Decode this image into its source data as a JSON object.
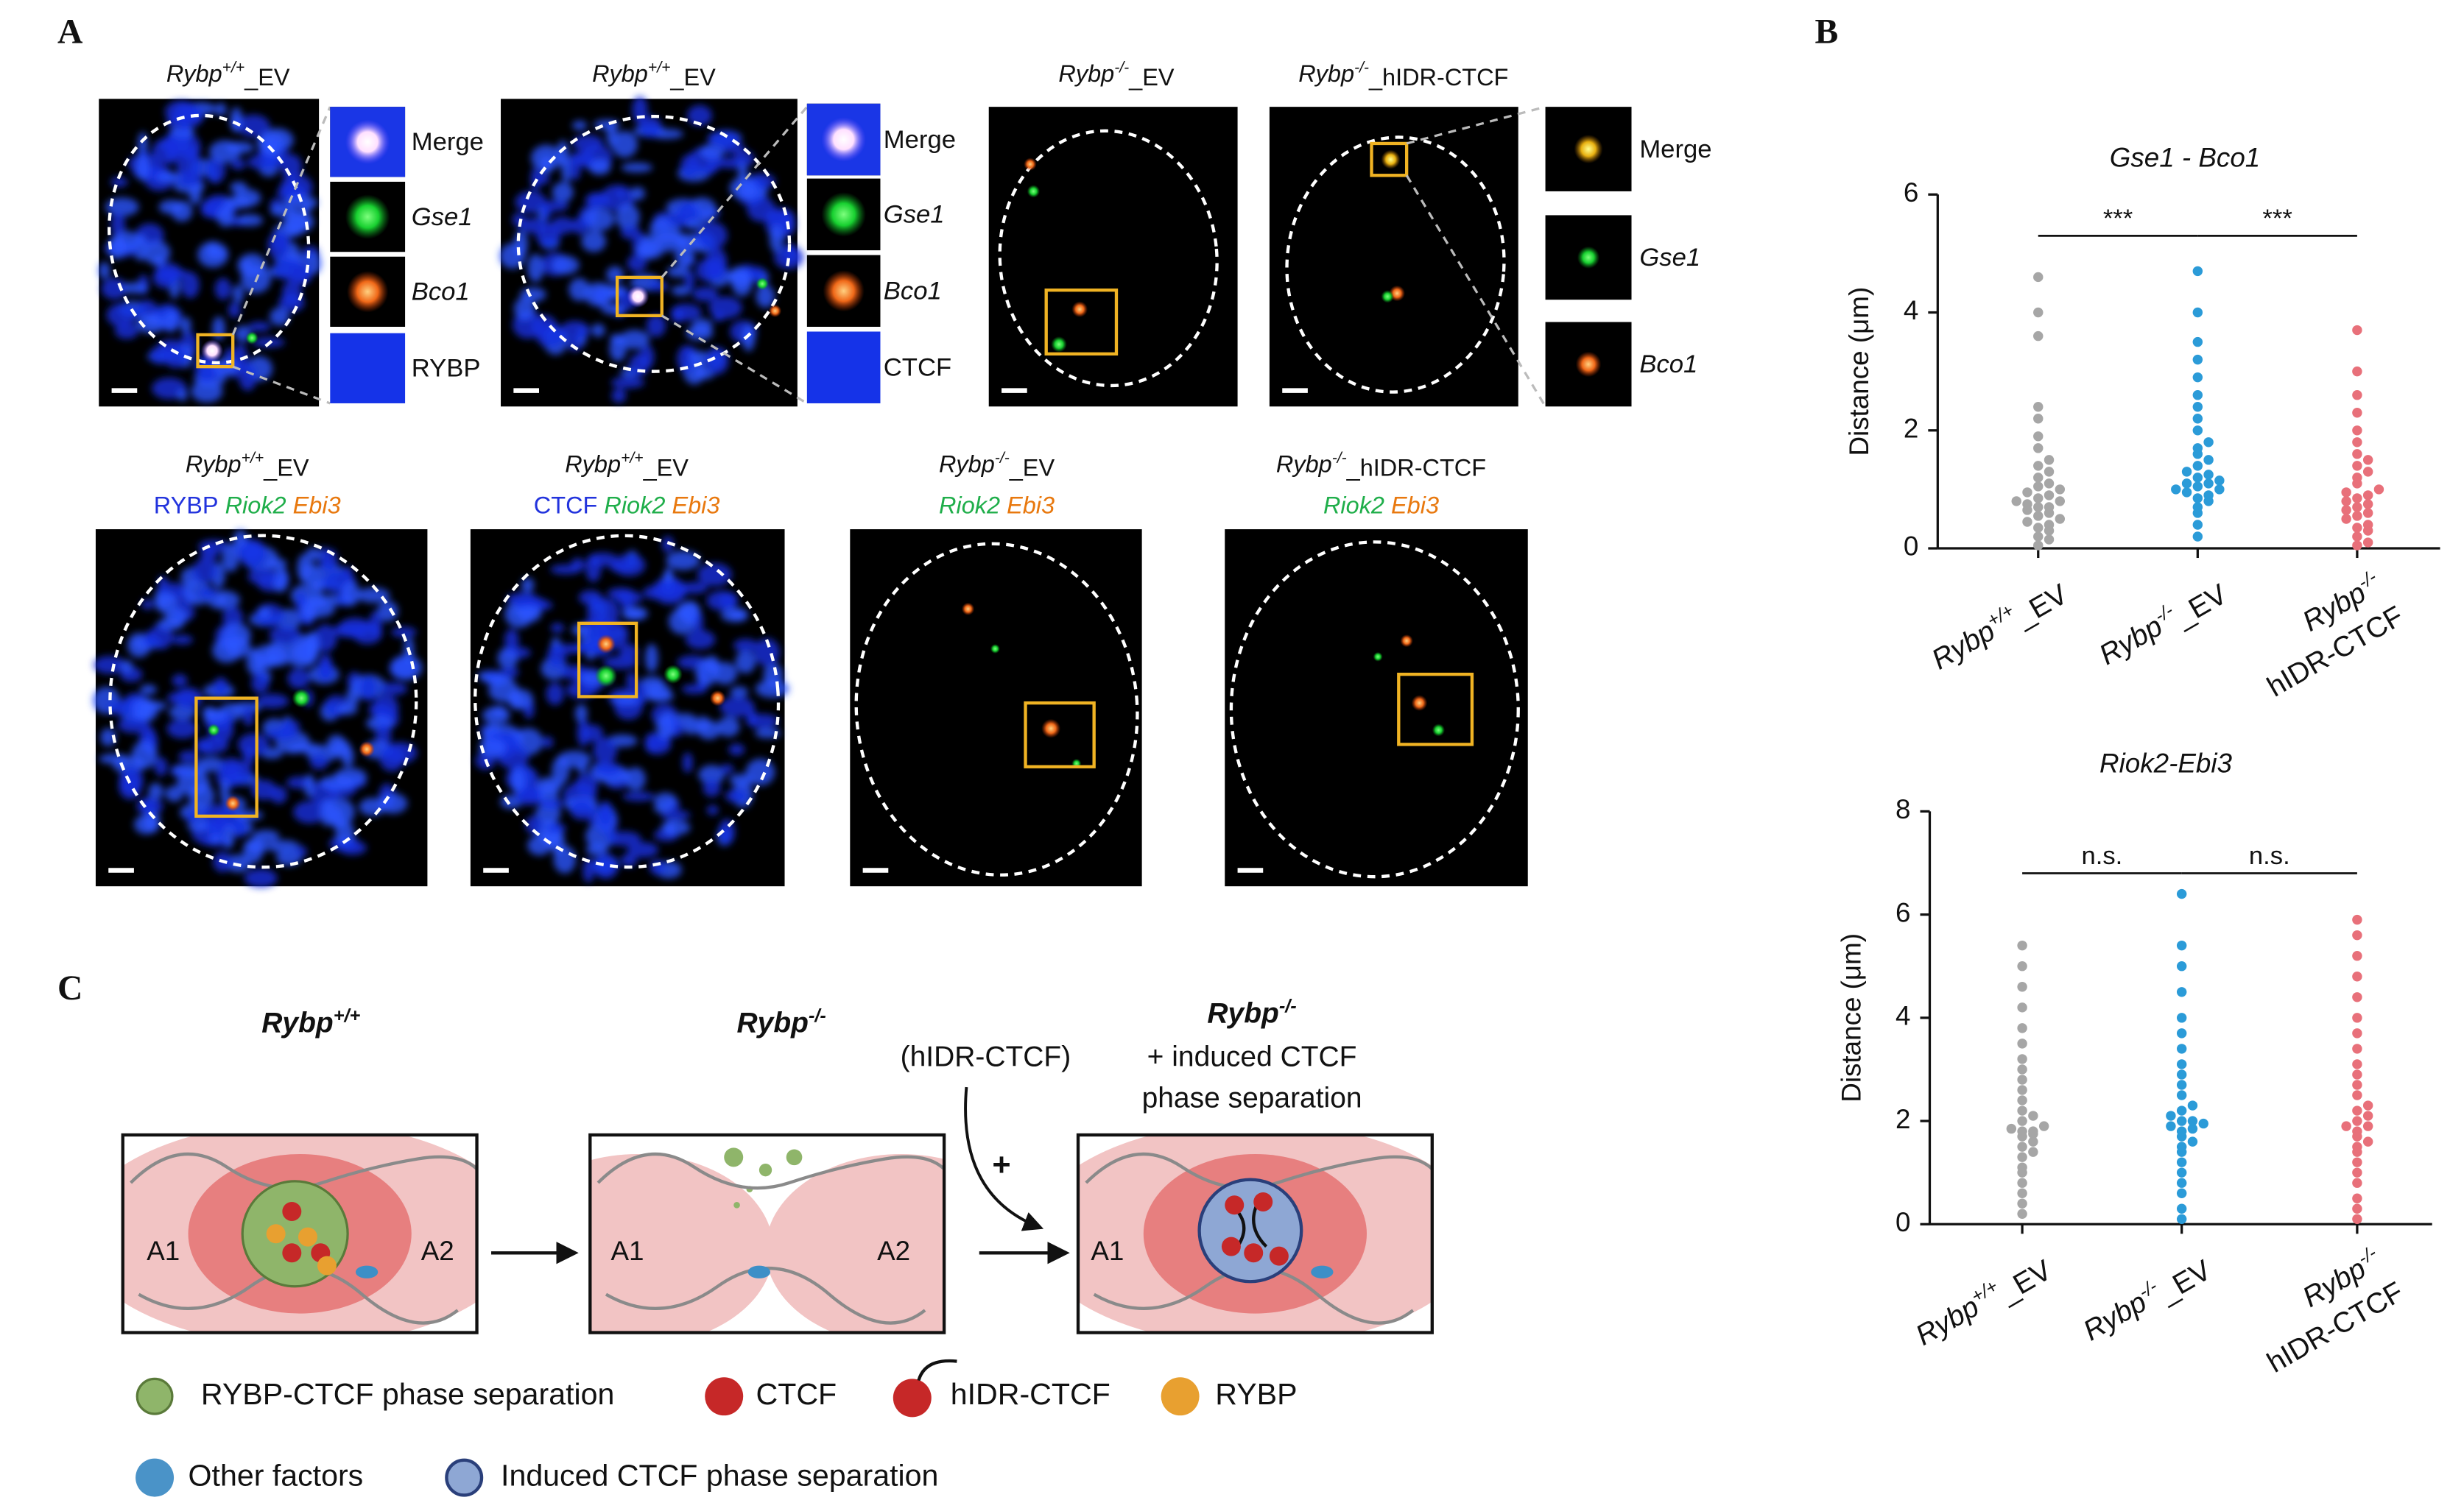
{
  "panel_labels": [
    "A",
    "B",
    "C"
  ],
  "panel_a": {
    "row1": [
      {
        "gene": "Rybp",
        "sup": "+/+",
        "suffix": "_EV",
        "insets": [
          {
            "text": "Merge",
            "color": "#111111",
            "italic": false
          },
          {
            "text": "Gse1",
            "color": "#1fae4a",
            "italic": true
          },
          {
            "text": "Bco1",
            "color": "#e8780e",
            "italic": true
          },
          {
            "text": "RYBP",
            "color": "#2b3fc0",
            "italic": false
          }
        ]
      },
      {
        "gene": "Rybp",
        "sup": "+/+",
        "suffix": "_EV",
        "insets": [
          {
            "text": "Merge",
            "color": "#111111",
            "italic": false
          },
          {
            "text": "Gse1",
            "color": "#1fae4a",
            "italic": true
          },
          {
            "text": "Bco1",
            "color": "#e8780e",
            "italic": true
          },
          {
            "text": "CTCF",
            "color": "#2b3fc0",
            "italic": false
          }
        ]
      },
      {
        "gene": "Rybp",
        "sup": "-/-",
        "suffix": "_EV"
      },
      {
        "gene": "Rybp",
        "sup": "-/-",
        "suffix": "_hIDR-CTCF",
        "insets": [
          {
            "text": "Merge",
            "color": "#111111",
            "italic": false
          },
          {
            "text": "Gse1",
            "color": "#1fae4a",
            "italic": true
          },
          {
            "text": "Bco1",
            "color": "#e8780e",
            "italic": true
          }
        ]
      }
    ],
    "row2": [
      {
        "gene": "Rybp",
        "sup": "+/+",
        "suffix": "_EV",
        "channels": [
          {
            "text": "RYBP",
            "color": "#2233dd",
            "italic": false
          },
          {
            "text": "Riok2",
            "color": "#1fae4a",
            "italic": true
          },
          {
            "text": "Ebi3",
            "color": "#e8780e",
            "italic": true
          }
        ]
      },
      {
        "gene": "Rybp",
        "sup": "+/+",
        "suffix": "_EV",
        "channels": [
          {
            "text": "CTCF",
            "color": "#2233dd",
            "italic": false
          },
          {
            "text": "Riok2",
            "color": "#1fae4a",
            "italic": true
          },
          {
            "text": "Ebi3",
            "color": "#e8780e",
            "italic": true
          }
        ]
      },
      {
        "gene": "Rybp",
        "sup": "-/-",
        "suffix": "_EV",
        "channels": [
          {
            "text": "Riok2",
            "color": "#1fae4a",
            "italic": true
          },
          {
            "text": "Ebi3",
            "color": "#e8780e",
            "italic": true
          }
        ]
      },
      {
        "gene": "Rybp",
        "sup": "-/-",
        "suffix": "_hIDR-CTCF",
        "channels": [
          {
            "text": "Riok2",
            "color": "#1fae4a",
            "italic": true
          },
          {
            "text": "Ebi3",
            "color": "#e8780e",
            "italic": true
          }
        ]
      }
    ]
  },
  "chart_data": [
    {
      "type": "strip",
      "title": "Gse1 - Bco1",
      "y_label": "Distance (μm)",
      "categories": [
        {
          "gene": "Rybp",
          "sup": "+/+",
          "suffix": "_EV"
        },
        {
          "gene": "Rybp",
          "sup": "-/-",
          "suffix": "_EV"
        },
        {
          "gene": "Rybp",
          "sup": "-/-",
          "suffix": "hIDR-CTCF"
        }
      ],
      "series": [
        {
          "color": "#a6a6a6",
          "values": [
            0.05,
            0.15,
            0.2,
            0.3,
            0.35,
            0.4,
            0.45,
            0.5,
            0.55,
            0.6,
            0.65,
            0.7,
            0.7,
            0.75,
            0.8,
            0.8,
            0.85,
            0.9,
            0.95,
            1.0,
            1.05,
            1.1,
            1.2,
            1.3,
            1.4,
            1.5,
            1.7,
            1.9,
            2.2,
            2.4,
            3.6,
            4.0,
            4.6
          ]
        },
        {
          "color": "#2b9bd8",
          "values": [
            0.2,
            0.4,
            0.6,
            0.7,
            0.8,
            0.85,
            0.9,
            0.95,
            1.0,
            1.0,
            1.05,
            1.1,
            1.1,
            1.15,
            1.2,
            1.25,
            1.3,
            1.4,
            1.5,
            1.6,
            1.7,
            1.8,
            2.0,
            2.2,
            2.4,
            2.6,
            2.9,
            3.2,
            3.5,
            4.0,
            4.7
          ]
        },
        {
          "color": "#e8707a",
          "values": [
            0.05,
            0.1,
            0.2,
            0.3,
            0.35,
            0.4,
            0.5,
            0.55,
            0.6,
            0.65,
            0.7,
            0.75,
            0.8,
            0.85,
            0.9,
            0.95,
            1.0,
            1.1,
            1.2,
            1.3,
            1.4,
            1.5,
            1.6,
            1.8,
            2.0,
            2.3,
            2.6,
            3.0,
            3.7
          ]
        }
      ],
      "ylim": [
        0,
        6
      ],
      "yticks": [
        0,
        2,
        4,
        6
      ],
      "annotations": [
        {
          "text": "***",
          "from": 0,
          "to": 1,
          "y": 5.3
        },
        {
          "text": "***",
          "from": 1,
          "to": 2,
          "y": 5.3
        }
      ]
    },
    {
      "type": "strip",
      "title": "Riok2-Ebi3",
      "y_label": "Distance (μm)",
      "categories": [
        {
          "gene": "Rybp",
          "sup": "+/+",
          "suffix": "_EV"
        },
        {
          "gene": "Rybp",
          "sup": "-/-",
          "suffix": "_EV"
        },
        {
          "gene": "Rybp",
          "sup": "-/-",
          "suffix": "hIDR-CTCF"
        }
      ],
      "series": [
        {
          "color": "#a6a6a6",
          "values": [
            0.2,
            0.4,
            0.6,
            0.8,
            1.0,
            1.1,
            1.3,
            1.4,
            1.5,
            1.6,
            1.7,
            1.75,
            1.8,
            1.8,
            1.85,
            1.9,
            2.0,
            2.1,
            2.2,
            2.4,
            2.6,
            2.8,
            3.0,
            3.2,
            3.5,
            3.8,
            4.2,
            4.6,
            5.0,
            5.4
          ]
        },
        {
          "color": "#2b9bd8",
          "values": [
            0.1,
            0.3,
            0.6,
            0.8,
            1.0,
            1.2,
            1.4,
            1.5,
            1.6,
            1.7,
            1.8,
            1.85,
            1.9,
            1.95,
            2.0,
            2.0,
            2.1,
            2.2,
            2.3,
            2.5,
            2.7,
            2.9,
            3.1,
            3.4,
            3.7,
            4.0,
            4.5,
            5.0,
            5.4,
            6.4
          ]
        },
        {
          "color": "#e8707a",
          "values": [
            0.1,
            0.3,
            0.5,
            0.8,
            1.0,
            1.2,
            1.4,
            1.5,
            1.6,
            1.7,
            1.8,
            1.9,
            1.9,
            2.0,
            2.1,
            2.2,
            2.3,
            2.5,
            2.7,
            2.9,
            3.1,
            3.4,
            3.7,
            4.0,
            4.4,
            4.8,
            5.2,
            5.6,
            5.9
          ]
        }
      ],
      "ylim": [
        0,
        8
      ],
      "yticks": [
        0,
        2,
        4,
        6,
        8
      ],
      "annotations": [
        {
          "text": "n.s.",
          "from": 0,
          "to": 1,
          "y": 6.8
        },
        {
          "text": "n.s.",
          "from": 1,
          "to": 2,
          "y": 6.8
        }
      ]
    }
  ],
  "panel_c": {
    "states": [
      {
        "gene": "Rybp",
        "sup": "+/+",
        "regions": [
          "A1",
          "A2"
        ]
      },
      {
        "gene": "Rybp",
        "sup": "-/-",
        "regions": [
          "A1",
          "A2"
        ]
      },
      {
        "gene": "Rybp",
        "sup": "-/-",
        "regions": [
          "A1"
        ],
        "note": [
          "+ induced CTCF",
          "phase separation"
        ]
      }
    ],
    "treatment": "(hIDR-CTCF)",
    "plus": "+",
    "legend": [
      "RYBP-CTCF phase separation",
      "CTCF",
      "hIDR-CTCF",
      "RYBP",
      "Other factors",
      "Induced CTCF phase separation"
    ]
  }
}
